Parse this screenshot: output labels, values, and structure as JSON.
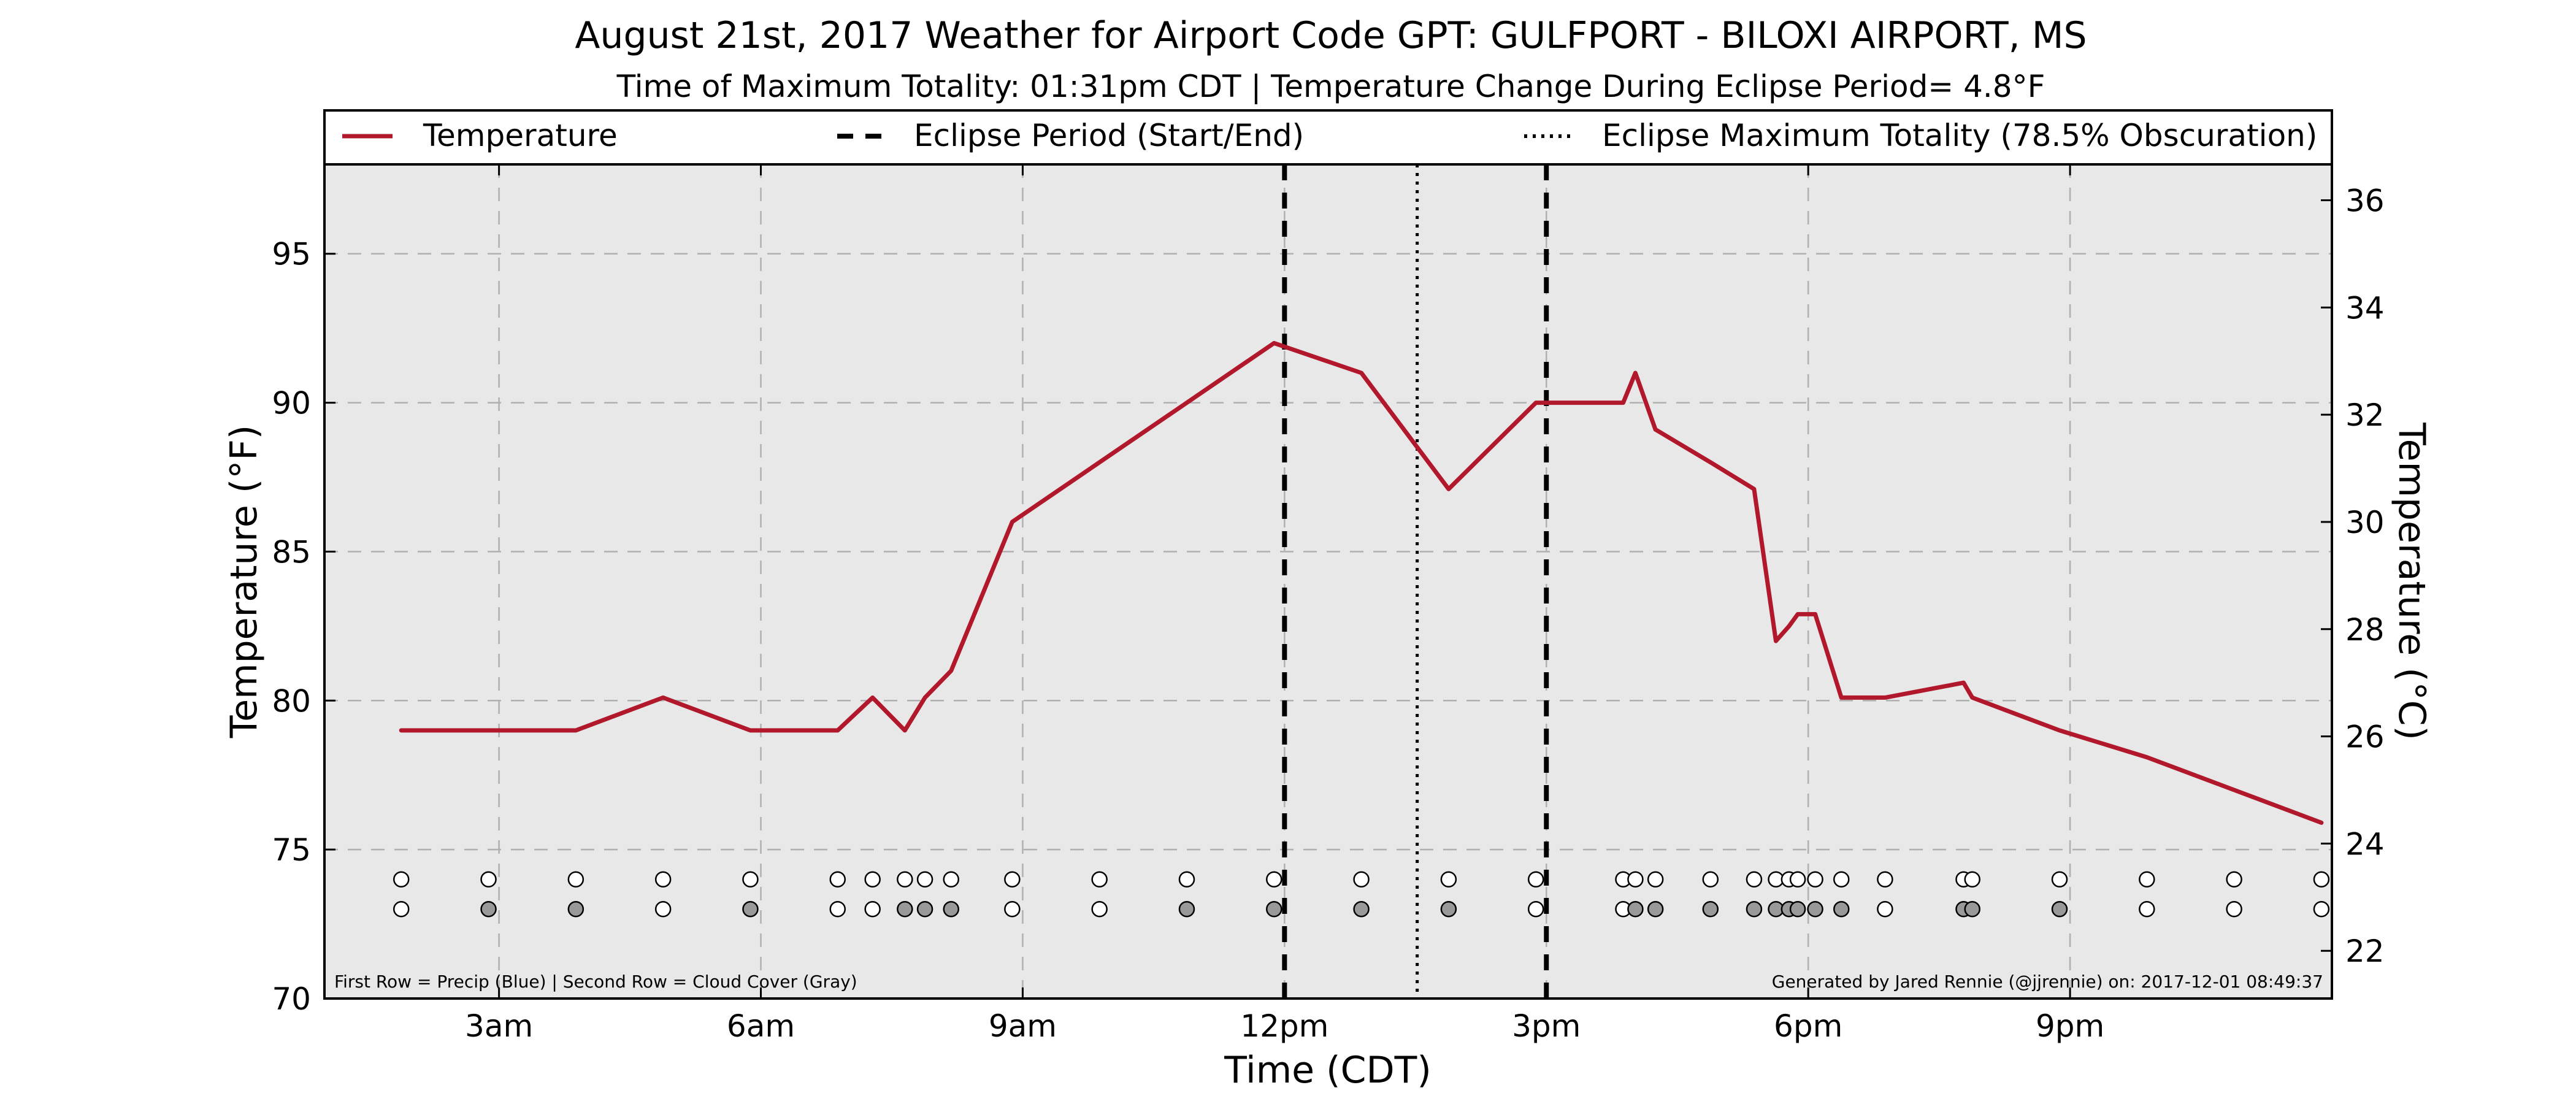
{
  "chart_data": {
    "type": "line",
    "title": "August 21st, 2017 Weather for Airport Code GPT: GULFPORT - BILOXI AIRPORT, MS",
    "subtitle": "Time of Maximum Totality: 01:31pm CDT | Temperature Change During Eclipse Period= 4.8°F",
    "xlabel": "Time (CDT)",
    "ylabel_left": "Temperature (°F)",
    "ylabel_right": "Temperature (°C)",
    "xlim": [
      1.0,
      24.0
    ],
    "ylim_left": [
      70,
      98
    ],
    "ylim_right": [
      21.11,
      36.67
    ],
    "x_ticks": [
      {
        "x": 3,
        "label": "3am"
      },
      {
        "x": 6,
        "label": "6am"
      },
      {
        "x": 9,
        "label": "9am"
      },
      {
        "x": 12,
        "label": "12pm"
      },
      {
        "x": 15,
        "label": "3pm"
      },
      {
        "x": 18,
        "label": "6pm"
      },
      {
        "x": 21,
        "label": "9pm"
      }
    ],
    "y_ticks_left": [
      70,
      75,
      80,
      85,
      90,
      95
    ],
    "y_ticks_right": [
      22,
      24,
      26,
      28,
      30,
      32,
      34,
      36
    ],
    "grid": true,
    "legend": [
      {
        "label": "Temperature",
        "style": "solid",
        "color": "#b2182b"
      },
      {
        "label": "Eclipse Period (Start/End)",
        "style": "dashed",
        "color": "#000000"
      },
      {
        "label": "Eclipse Maximum Totality (78.5% Obscuration)",
        "style": "dotted",
        "color": "#000000"
      }
    ],
    "legend_position": "top",
    "series": [
      {
        "name": "Temperature",
        "color": "#b2182b",
        "points": [
          [
            1.88,
            79.0
          ],
          [
            2.88,
            79.0
          ],
          [
            3.88,
            79.0
          ],
          [
            4.88,
            80.1
          ],
          [
            5.88,
            79.0
          ],
          [
            6.88,
            79.0
          ],
          [
            7.28,
            80.1
          ],
          [
            7.65,
            79.0
          ],
          [
            7.88,
            80.1
          ],
          [
            8.18,
            81.0
          ],
          [
            8.88,
            86.0
          ],
          [
            10.88,
            90.0
          ],
          [
            11.88,
            92.0
          ],
          [
            12.88,
            91.0
          ],
          [
            13.88,
            87.1
          ],
          [
            14.88,
            90.0
          ],
          [
            15.88,
            90.0
          ],
          [
            16.02,
            91.0
          ],
          [
            16.25,
            89.1
          ],
          [
            16.88,
            88.0
          ],
          [
            17.38,
            87.1
          ],
          [
            17.63,
            82.0
          ],
          [
            17.78,
            82.5
          ],
          [
            17.88,
            82.9
          ],
          [
            18.08,
            82.9
          ],
          [
            18.38,
            80.1
          ],
          [
            18.88,
            80.1
          ],
          [
            19.78,
            80.6
          ],
          [
            19.88,
            80.1
          ],
          [
            20.88,
            79.0
          ],
          [
            21.88,
            78.1
          ],
          [
            22.88,
            77.0
          ],
          [
            23.88,
            75.9
          ]
        ]
      }
    ],
    "eclipse_start": 12.0,
    "eclipse_end": 15.0,
    "eclipse_max": 13.52,
    "obs_rows": {
      "row1_y": 74,
      "row2_y": 73,
      "times": [
        1.88,
        2.88,
        3.88,
        4.88,
        5.88,
        6.88,
        7.28,
        7.65,
        7.88,
        8.18,
        8.88,
        9.88,
        10.88,
        11.88,
        12.88,
        13.88,
        14.88,
        15.88,
        16.02,
        16.25,
        16.88,
        17.38,
        17.63,
        17.78,
        17.88,
        18.08,
        18.38,
        18.88,
        19.78,
        19.88,
        20.88,
        21.88,
        22.88,
        23.88
      ],
      "row1_fill": [
        "w",
        "w",
        "w",
        "w",
        "w",
        "w",
        "w",
        "w",
        "w",
        "w",
        "w",
        "w",
        "w",
        "w",
        "w",
        "w",
        "w",
        "w",
        "w",
        "w",
        "w",
        "w",
        "w",
        "w",
        "w",
        "w",
        "w",
        "w",
        "w",
        "w",
        "w",
        "w",
        "w",
        "w"
      ],
      "row2_fill": [
        "w",
        "g",
        "g",
        "w",
        "g",
        "w",
        "w",
        "g",
        "g",
        "g",
        "w",
        "w",
        "g",
        "g",
        "g",
        "g",
        "w",
        "w",
        "g",
        "g",
        "g",
        "g",
        "g",
        "g",
        "g",
        "g",
        "g",
        "w",
        "g",
        "g",
        "g",
        "w",
        "w",
        "w"
      ]
    },
    "footnote_left": "First Row = Precip (Blue) | Second Row = Cloud Cover (Gray)",
    "footnote_right": "Generated by Jared Rennie (@jjrennie) on: 2017-12-01 08:49:37",
    "colors": {
      "plot_background": "#e8e8e8",
      "grid": "#b0b0b0",
      "cloud_gray": "#999999"
    }
  }
}
